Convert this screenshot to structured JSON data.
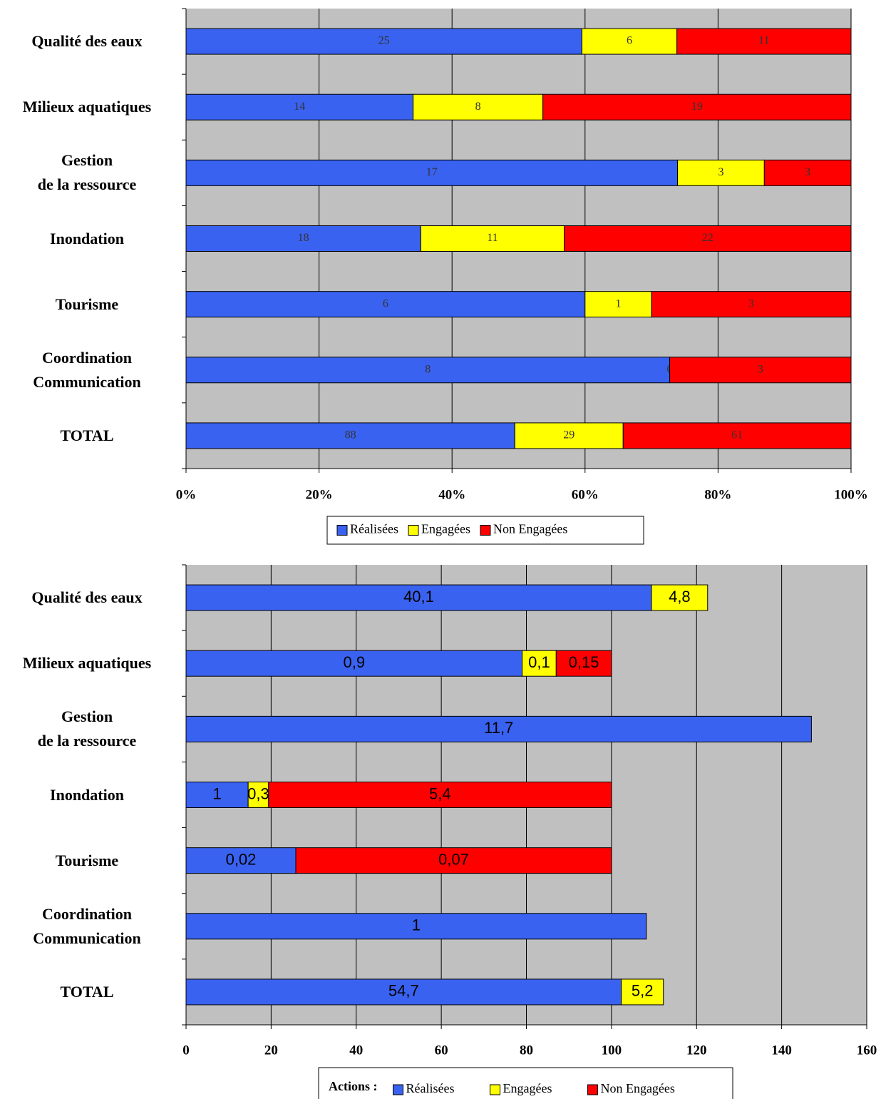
{
  "chart_data": [
    {
      "type": "bar",
      "stacked": "percent",
      "orientation": "horizontal",
      "categories": [
        "Qualité des eaux",
        "Milieux aquatiques",
        "Gestion\nde la ressource",
        "Inondation",
        "Tourisme",
        "Coordination\nCommunication",
        "TOTAL"
      ],
      "series": [
        {
          "name": "Réalisées",
          "color": "#3a62f0",
          "values": [
            25,
            14,
            17,
            18,
            6,
            8,
            88
          ]
        },
        {
          "name": "Engagées",
          "color": "#ffff00",
          "values": [
            6,
            8,
            3,
            11,
            1,
            0,
            29
          ]
        },
        {
          "name": "Non Engagées",
          "color": "#ff0000",
          "values": [
            11,
            19,
            3,
            22,
            3,
            3,
            61
          ]
        }
      ],
      "xlim": [
        0,
        100
      ],
      "xticks": [
        {
          "value": 0,
          "label": "0%"
        },
        {
          "value": 20,
          "label": "20%"
        },
        {
          "value": 40,
          "label": "40%"
        },
        {
          "value": 60,
          "label": "60%"
        },
        {
          "value": 80,
          "label": "80%"
        },
        {
          "value": 100,
          "label": "100%"
        }
      ],
      "grid": true,
      "legend": "bottom"
    },
    {
      "type": "bar",
      "stacked": "stacked",
      "orientation": "horizontal",
      "categories": [
        "Qualité des eaux",
        "Milieux aquatiques",
        "Gestion\nde la ressource",
        "Inondation",
        "Tourisme",
        "Coordination\nCommunication",
        "TOTAL"
      ],
      "series": [
        {
          "name": "Réalisées",
          "color": "#3a62f0",
          "values": [
            109.4,
            79,
            147,
            14.6,
            25.8,
            108.2,
            102.3
          ],
          "value_labels": [
            "40,1",
            "0,9",
            "11,7",
            "1",
            "0,02",
            "1",
            "54,7"
          ]
        },
        {
          "name": "Engagées",
          "color": "#ffff00",
          "values": [
            13.2,
            8,
            null,
            4.8,
            null,
            null,
            9.9
          ],
          "value_labels": [
            "4,8",
            "0,1",
            null,
            "0,3",
            null,
            null,
            "5,2"
          ]
        },
        {
          "name": "Non Engagées",
          "color": "#ff0000",
          "values": [
            null,
            13,
            null,
            80.6,
            74.2,
            null,
            null
          ],
          "value_labels": [
            null,
            "0,15",
            null,
            "5,4",
            "0,07",
            null,
            null
          ]
        }
      ],
      "xlim": [
        0,
        160
      ],
      "xticks": [
        0,
        20,
        40,
        60,
        80,
        100,
        120,
        140,
        160
      ],
      "grid": true,
      "legend": "bottom",
      "legend_title": "Actions :"
    }
  ]
}
